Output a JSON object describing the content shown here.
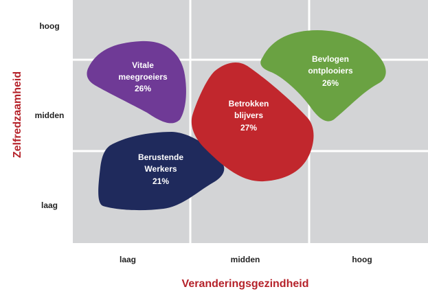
{
  "axes": {
    "x_title": "Veranderingsgezindheid",
    "y_title": "Zelfredzaamheid",
    "x_ticks": [
      "laag",
      "midden",
      "hoog"
    ],
    "y_ticks": [
      "hoog",
      "midden",
      "laag"
    ]
  },
  "colors": {
    "grid_bg": "#d3d4d6",
    "grid_line": "#ffffff",
    "axis_title": "#b5222a",
    "tick_text": "#222222"
  },
  "segments": [
    {
      "id": "vitale",
      "lines": [
        "Vitale",
        "meegroeiers"
      ],
      "percent": "26%",
      "color": "#6f3a96"
    },
    {
      "id": "berustende",
      "lines": [
        "Berustende",
        "Werkers"
      ],
      "percent": "21%",
      "color": "#1f2a5c"
    },
    {
      "id": "betrokken",
      "lines": [
        "Betrokken",
        "blijvers"
      ],
      "percent": "27%",
      "color": "#c1272d"
    },
    {
      "id": "bevlogen",
      "lines": [
        "Bevlogen",
        "ontplooiers"
      ],
      "percent": "26%",
      "color": "#6aa242"
    }
  ]
}
